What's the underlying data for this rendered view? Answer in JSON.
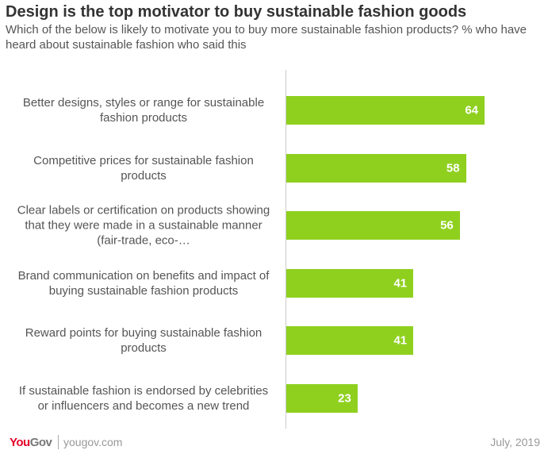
{
  "chart_data": {
    "type": "bar",
    "orientation": "horizontal",
    "title": "Design is the top motivator to buy sustainable fashion goods",
    "subtitle": "Which of the below is likely to motivate you to buy more sustainable fashion products? % who have heard about sustainable fashion who said this",
    "categories": [
      "Better designs, styles or range for sustainable fashion products",
      "Competitive prices for sustainable fashion products",
      "Clear labels or certification on products showing that they were made in a sustainable manner (fair-trade, eco-…",
      "Brand communication on benefits and impact of buying sustainable fashion products",
      "Reward points for buying sustainable fashion products",
      "If sustainable fashion is endorsed by celebrities or influencers and becomes a new trend"
    ],
    "values": [
      64,
      58,
      56,
      41,
      41,
      23
    ],
    "data_labels": [
      "64",
      "58",
      "56",
      "41",
      "41",
      "23"
    ],
    "xlim": [
      0,
      80
    ],
    "grid": false,
    "bar_color": "#8fd01f"
  },
  "footer": {
    "brand_you": "You",
    "brand_gov": "Gov",
    "site": "yougov.com",
    "date": "July, 2019"
  }
}
